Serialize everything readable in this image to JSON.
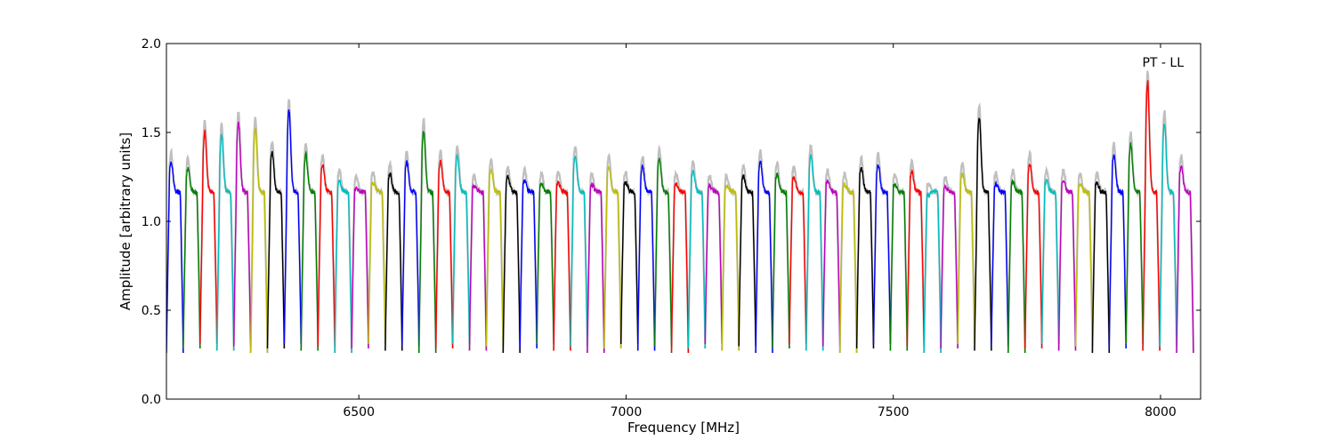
{
  "chart_data": {
    "type": "line",
    "title": "",
    "annotation": "PT - LL",
    "xlabel": "Frequency [MHz]",
    "ylabel": "Amplitude [arbitrary units]",
    "xlim": [
      6140,
      8075
    ],
    "ylim": [
      0.0,
      2.0
    ],
    "xticks": [
      6500,
      7000,
      7500,
      8000
    ],
    "xtick_labels": [
      "6500",
      "7000",
      "7500",
      "8000"
    ],
    "yticks": [
      0.0,
      0.5,
      1.0,
      1.5,
      2.0
    ],
    "ytick_labels": [
      "0.0",
      "0.5",
      "1.0",
      "1.5",
      "2.0"
    ],
    "grid": false,
    "colors": {
      "background_series": "#bfbfbf",
      "cycle": [
        "#0000ff",
        "#008000",
        "#ff0000",
        "#00bfbf",
        "#bf00bf",
        "#bfbf00",
        "#000000"
      ]
    },
    "channel_width_mhz": 31.5,
    "channel_starts_mhz": [
      6140.0,
      6171.5,
      6203.0,
      6234.5,
      6266.0,
      6297.5,
      6329.0,
      6360.5,
      6392.0,
      6423.5,
      6455.0,
      6486.5,
      6518.0,
      6549.5,
      6581.0,
      6612.5,
      6644.0,
      6675.5,
      6707.0,
      6738.5,
      6770.0,
      6801.5,
      6833.0,
      6864.5,
      6896.0,
      6927.5,
      6959.0,
      6990.5,
      7022.0,
      7053.5,
      7085.0,
      7116.5,
      7148.0,
      7179.5,
      7211.0,
      7242.5,
      7274.0,
      7305.5,
      7337.0,
      7368.5,
      7400.0,
      7431.5,
      7463.0,
      7494.5,
      7526.0,
      7557.5,
      7589.0,
      7620.5,
      7652.0,
      7683.5,
      7715.0,
      7746.5,
      7778.0,
      7809.5,
      7841.0,
      7872.5,
      7904.0,
      7935.5,
      7967.0,
      7998.5,
      8030.0
    ],
    "channel_peak_amplitudes": [
      1.32,
      1.29,
      1.5,
      1.48,
      1.55,
      1.51,
      1.38,
      1.62,
      1.37,
      1.31,
      1.22,
      1.18,
      1.21,
      1.26,
      1.33,
      1.5,
      1.33,
      1.36,
      1.19,
      1.28,
      1.24,
      1.22,
      1.2,
      1.21,
      1.36,
      1.2,
      1.3,
      1.21,
      1.3,
      1.34,
      1.2,
      1.27,
      1.19,
      1.19,
      1.25,
      1.33,
      1.26,
      1.24,
      1.36,
      1.22,
      1.2,
      1.29,
      1.31,
      1.2,
      1.27,
      1.14,
      1.18,
      1.26,
      1.58,
      1.2,
      1.22,
      1.32,
      1.22,
      1.22,
      1.2,
      1.2,
      1.37,
      1.43,
      1.78,
      1.55,
      1.3
    ]
  }
}
